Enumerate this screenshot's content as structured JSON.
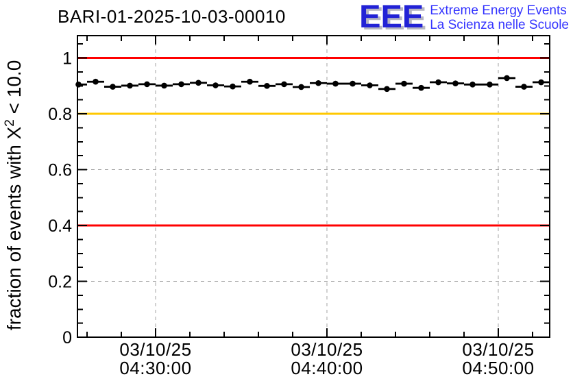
{
  "header": {
    "title": "BARI-01-2025-10-03-00010",
    "logo": {
      "acronym": "EEE",
      "line1": "Extreme Energy Events",
      "line2": "La Scienza nelle Scuole",
      "acronym_color": "#2222d6",
      "text_color": "#3333ff"
    }
  },
  "chart_data": {
    "type": "scatter",
    "title": "BARI-01-2025-10-03-00010",
    "ylabel": {
      "pre": "fraction of events with X",
      "sup": "2",
      "post": " < 10.0"
    },
    "xlabel": "",
    "ylim": [
      0,
      1.08
    ],
    "grid": true,
    "grid_style": {
      "color": "#a3a3a3",
      "dash": "5 5"
    },
    "y_axis": {
      "major_ticks": [
        {
          "v": 0,
          "label": "0"
        },
        {
          "v": 0.2,
          "label": "0.2"
        },
        {
          "v": 0.4,
          "label": "0.4"
        },
        {
          "v": 0.6,
          "label": "0.6"
        },
        {
          "v": 0.8,
          "label": "0.8"
        },
        {
          "v": 1,
          "label": "1"
        }
      ],
      "minor_step": 0.05
    },
    "x_axis": {
      "unit": "time",
      "start_offset_min": -4.56,
      "end_offset_min": 23,
      "minor_step_min": 2,
      "major_ticks": [
        {
          "offset_min": 0,
          "date": "03/10/25",
          "time": "04:30:00"
        },
        {
          "offset_min": 10,
          "date": "03/10/25",
          "time": "04:40:00"
        },
        {
          "offset_min": 20,
          "date": "03/10/25",
          "time": "04:50:00"
        }
      ]
    },
    "reference_lines": [
      {
        "y": 1.0,
        "color": "#ff0000"
      },
      {
        "y": 0.8,
        "color": "#ffc800"
      },
      {
        "y": 0.4,
        "color": "#ff0000"
      }
    ],
    "series": [
      {
        "name": "fraction of events with chi2 < 10.0",
        "marker": "filled-circle",
        "color": "#000000",
        "x_bin_halfwidth_min": 0.5,
        "points": [
          {
            "time": "04:25:30",
            "offset_min": -4.5,
            "y": 0.905
          },
          {
            "time": "04:26:30",
            "offset_min": -3.5,
            "y": 0.915
          },
          {
            "time": "04:27:30",
            "offset_min": -2.5,
            "y": 0.897
          },
          {
            "time": "04:28:30",
            "offset_min": -1.5,
            "y": 0.901
          },
          {
            "time": "04:29:30",
            "offset_min": -0.5,
            "y": 0.906
          },
          {
            "time": "04:30:30",
            "offset_min": 0.5,
            "y": 0.901
          },
          {
            "time": "04:31:30",
            "offset_min": 1.5,
            "y": 0.906
          },
          {
            "time": "04:32:30",
            "offset_min": 2.5,
            "y": 0.911
          },
          {
            "time": "04:33:30",
            "offset_min": 3.5,
            "y": 0.902
          },
          {
            "time": "04:34:30",
            "offset_min": 4.5,
            "y": 0.898
          },
          {
            "time": "04:35:30",
            "offset_min": 5.5,
            "y": 0.915
          },
          {
            "time": "04:36:30",
            "offset_min": 6.5,
            "y": 0.9
          },
          {
            "time": "04:37:30",
            "offset_min": 7.5,
            "y": 0.906
          },
          {
            "time": "04:38:30",
            "offset_min": 8.5,
            "y": 0.896
          },
          {
            "time": "04:39:30",
            "offset_min": 9.5,
            "y": 0.91
          },
          {
            "time": "04:40:30",
            "offset_min": 10.5,
            "y": 0.908
          },
          {
            "time": "04:41:30",
            "offset_min": 11.5,
            "y": 0.908
          },
          {
            "time": "04:42:30",
            "offset_min": 12.5,
            "y": 0.902
          },
          {
            "time": "04:43:30",
            "offset_min": 13.5,
            "y": 0.889
          },
          {
            "time": "04:44:30",
            "offset_min": 14.5,
            "y": 0.908
          },
          {
            "time": "04:45:30",
            "offset_min": 15.5,
            "y": 0.893
          },
          {
            "time": "04:46:30",
            "offset_min": 16.5,
            "y": 0.913
          },
          {
            "time": "04:47:30",
            "offset_min": 17.5,
            "y": 0.909
          },
          {
            "time": "04:48:30",
            "offset_min": 18.5,
            "y": 0.905
          },
          {
            "time": "04:49:30",
            "offset_min": 19.5,
            "y": 0.905
          },
          {
            "time": "04:50:30",
            "offset_min": 20.5,
            "y": 0.928
          },
          {
            "time": "04:51:30",
            "offset_min": 21.5,
            "y": 0.897
          },
          {
            "time": "04:52:30",
            "offset_min": 22.5,
            "y": 0.913
          }
        ]
      }
    ]
  }
}
